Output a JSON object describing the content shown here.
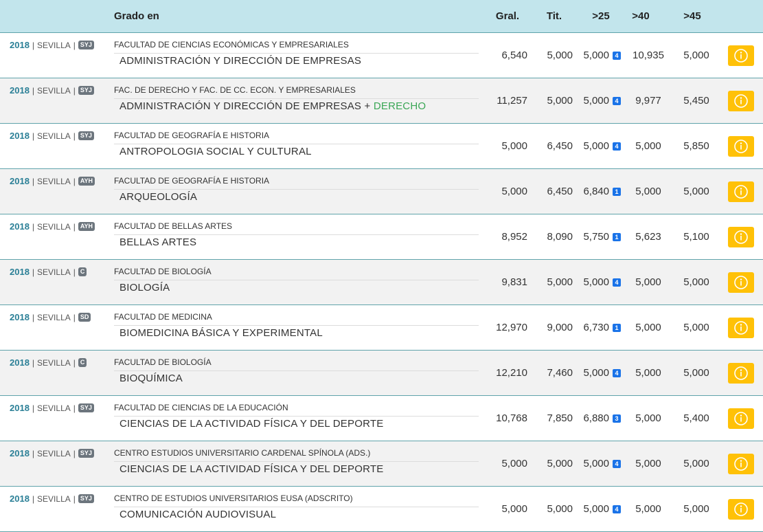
{
  "header": {
    "title": "Grado en",
    "columns": [
      "Gral.",
      "Tit.",
      ">25",
      ">40",
      ">45"
    ]
  },
  "separator": "|",
  "rows": [
    {
      "year": 2018,
      "city": "SEVILLA",
      "badge": "SYJ",
      "faculty": "FACULTAD DE CIENCIAS ECONÓMICAS Y EMPRESARIALES",
      "degree": "ADMINISTRACIÓN Y DIRECCIÓN DE EMPRESAS",
      "gral": "6,540",
      "tit": "5,000",
      "gt25": "5,000",
      "gt25_badge": 4,
      "gt40": "10,935",
      "gt45": "5,000"
    },
    {
      "year": 2018,
      "city": "SEVILLA",
      "badge": "SYJ",
      "faculty": "FAC. DE DERECHO Y FAC. DE CC. ECON. Y EMPRESARIALES",
      "degree": "ADMINISTRACIÓN Y DIRECCIÓN DE EMPRESAS",
      "joiner": "+",
      "degree_extra": "DERECHO",
      "gral": "11,257",
      "tit": "5,000",
      "gt25": "5,000",
      "gt25_badge": 4,
      "gt40": "9,977",
      "gt45": "5,450"
    },
    {
      "year": 2018,
      "city": "SEVILLA",
      "badge": "SYJ",
      "faculty": "FACULTAD DE GEOGRAFÍA E HISTORIA",
      "degree": "ANTROPOLOGIA SOCIAL Y CULTURAL",
      "gral": "5,000",
      "tit": "6,450",
      "gt25": "5,000",
      "gt25_badge": 4,
      "gt40": "5,000",
      "gt45": "5,850"
    },
    {
      "year": 2018,
      "city": "SEVILLA",
      "badge": "AYH",
      "faculty": "FACULTAD DE GEOGRAFÍA E HISTORIA",
      "degree": "ARQUEOLOGÍA",
      "gral": "5,000",
      "tit": "6,450",
      "gt25": "6,840",
      "gt25_badge": 1,
      "gt40": "5,000",
      "gt45": "5,000"
    },
    {
      "year": 2018,
      "city": "SEVILLA",
      "badge": "AYH",
      "faculty": "FACULTAD DE BELLAS ARTES",
      "degree": "BELLAS ARTES",
      "gral": "8,952",
      "tit": "8,090",
      "gt25": "5,750",
      "gt25_badge": 1,
      "gt40": "5,623",
      "gt45": "5,100"
    },
    {
      "year": 2018,
      "city": "SEVILLA",
      "badge": "C",
      "faculty": "FACULTAD DE BIOLOGÍA",
      "degree": "BIOLOGÍA",
      "gral": "9,831",
      "tit": "5,000",
      "gt25": "5,000",
      "gt25_badge": 4,
      "gt40": "5,000",
      "gt45": "5,000"
    },
    {
      "year": 2018,
      "city": "SEVILLA",
      "badge": "SD",
      "faculty": "FACULTAD DE MEDICINA",
      "degree": "BIOMEDICINA BÁSICA Y EXPERIMENTAL",
      "gral": "12,970",
      "tit": "9,000",
      "gt25": "6,730",
      "gt25_badge": 1,
      "gt40": "5,000",
      "gt45": "5,000"
    },
    {
      "year": 2018,
      "city": "SEVILLA",
      "badge": "C",
      "faculty": "FACULTAD DE BIOLOGÍA",
      "degree": "BIOQUÍMICA",
      "gral": "12,210",
      "tit": "7,460",
      "gt25": "5,000",
      "gt25_badge": 4,
      "gt40": "5,000",
      "gt45": "5,000"
    },
    {
      "year": 2018,
      "city": "SEVILLA",
      "badge": "SYJ",
      "faculty": "FACULTAD DE CIENCIAS DE LA EDUCACIÓN",
      "degree": "CIENCIAS DE LA ACTIVIDAD FÍSICA Y DEL DEPORTE",
      "gral": "10,768",
      "tit": "7,850",
      "gt25": "6,880",
      "gt25_badge": 3,
      "gt40": "5,000",
      "gt45": "5,400"
    },
    {
      "year": 2018,
      "city": "SEVILLA",
      "badge": "SYJ",
      "faculty": "CENTRO ESTUDIOS UNIVERSITARIO CARDENAL SPÍNOLA (ADS.)",
      "degree": "CIENCIAS DE LA ACTIVIDAD FÍSICA Y DEL DEPORTE",
      "gral": "5,000",
      "tit": "5,000",
      "gt25": "5,000",
      "gt25_badge": 4,
      "gt40": "5,000",
      "gt45": "5,000"
    },
    {
      "year": 2018,
      "city": "SEVILLA",
      "badge": "SYJ",
      "faculty": "CENTRO DE ESTUDIOS UNIVERSITARIOS EUSA (ADSCRITO)",
      "degree": "COMUNICACIÓN AUDIOVISUAL",
      "gral": "5,000",
      "tit": "5,000",
      "gt25": "5,000",
      "gt25_badge": 4,
      "gt40": "5,000",
      "gt45": "5,000"
    }
  ]
}
